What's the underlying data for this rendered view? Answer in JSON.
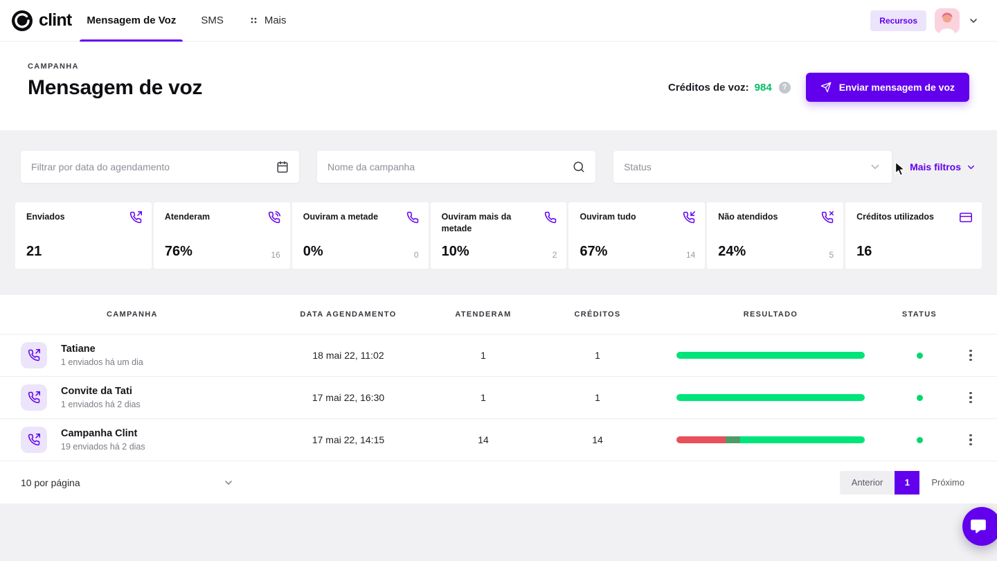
{
  "colors": {
    "accent": "#6200EE",
    "accent_light": "#ECE4FB",
    "bar_green": "#00E57A",
    "bar_red": "#E8505B",
    "bar_dark_green": "#4E9B68",
    "status_dot_green": "#00D96E",
    "credits_green": "#00BE62"
  },
  "nav": {
    "logo": "clint",
    "tabs": [
      {
        "label": "Mensagem de Voz",
        "active": true
      },
      {
        "label": "SMS",
        "active": false
      },
      {
        "label": "Mais",
        "active": false
      }
    ],
    "recursos": "Recursos"
  },
  "header": {
    "eyebrow": "CAMPANHA",
    "title": "Mensagem de voz",
    "credits_label": "Créditos de voz:",
    "credits_value": "984",
    "help_glyph": "?",
    "send_button": "Enviar mensagem de voz"
  },
  "filters": {
    "date_placeholder": "Filtrar por data do agendamento",
    "name_placeholder": "Nome da campanha",
    "status_placeholder": "Status",
    "more_filters": "Mais filtros"
  },
  "stats": [
    {
      "label": "Enviados",
      "icon": "phone-outgoing",
      "value": "21",
      "secondary": ""
    },
    {
      "label": "Atenderam",
      "icon": "phone-call",
      "value": "76%",
      "secondary": "16"
    },
    {
      "label": "Ouviram a metade",
      "icon": "phone",
      "value": "0%",
      "secondary": "0"
    },
    {
      "label": "Ouviram mais da metade",
      "icon": "phone",
      "value": "10%",
      "secondary": "2"
    },
    {
      "label": "Ouviram tudo",
      "icon": "phone-incoming",
      "value": "67%",
      "secondary": "14"
    },
    {
      "label": "Não atendidos",
      "icon": "phone-missed",
      "value": "24%",
      "secondary": "5"
    },
    {
      "label": "Créditos utilizados",
      "icon": "credit-card",
      "value": "16",
      "secondary": ""
    }
  ],
  "table": {
    "columns": [
      "CAMPANHA",
      "DATA AGENDAMENTO",
      "ATENDERAM",
      "CRÉDITOS",
      "RESULTADO",
      "STATUS"
    ],
    "rows": [
      {
        "name": "Tatiane",
        "subtitle": "1 enviados há um dia",
        "date": "18 mai 22, 11:02",
        "atenderam": "1",
        "creditos": "1",
        "result_segments": [
          {
            "color": "#00E57A",
            "pct": 100
          }
        ],
        "status_color": "#00D96E"
      },
      {
        "name": "Convite da Tati",
        "subtitle": "1 enviados há 2 dias",
        "date": "17 mai 22, 16:30",
        "atenderam": "1",
        "creditos": "1",
        "result_segments": [
          {
            "color": "#00E57A",
            "pct": 100
          }
        ],
        "status_color": "#00D96E"
      },
      {
        "name": "Campanha Clint",
        "subtitle": "19 enviados há 2 dias",
        "date": "17 mai 22, 14:15",
        "atenderam": "14",
        "creditos": "14",
        "result_segments": [
          {
            "color": "#E8505B",
            "pct": 26
          },
          {
            "color": "#4E9B68",
            "pct": 8
          },
          {
            "color": "#00E57A",
            "pct": 66
          }
        ],
        "status_color": "#00D96E"
      }
    ]
  },
  "pagination": {
    "per_page": "10 por página",
    "prev": "Anterior",
    "page": "1",
    "next": "Próximo"
  }
}
